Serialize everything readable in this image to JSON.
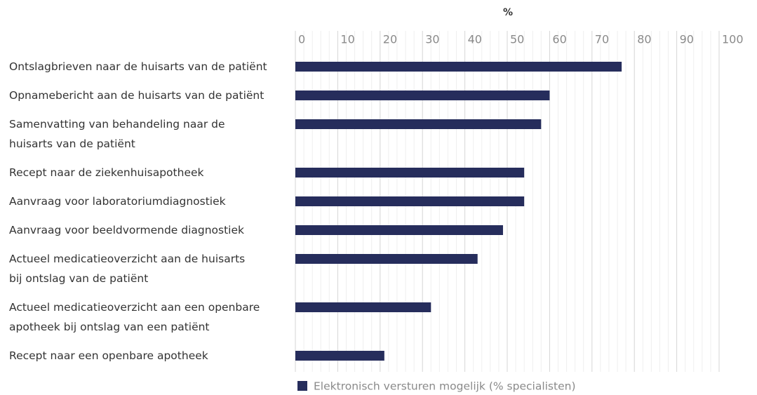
{
  "chart_data": {
    "type": "bar",
    "orientation": "horizontal",
    "title": "%",
    "categories": [
      "Ontslagbrieven naar de huisarts van de patiënt",
      "Opnamebericht aan de huisarts van de patiënt",
      "Samenvatting van behandeling naar de\nhuisarts van de patiënt",
      "Recept naar de ziekenhuisapotheek",
      "Aanvraag voor laboratoriumdiagnostiek",
      "Aanvraag voor beeldvormende diagnostiek",
      "Actueel medicatieoverzicht aan de huisarts\nbij ontslag van de patiënt",
      "Actueel medicatieoverzicht aan een openbare\napotheek bij ontslag van een patiënt",
      "Recept naar een openbare apotheek"
    ],
    "series": [
      {
        "name": "Elektronisch versturen mogelijk (% specialisten)",
        "color": "#262d5c",
        "values": [
          77,
          60,
          58,
          54,
          54,
          49,
          43,
          32,
          21
        ]
      }
    ],
    "xlim": [
      0,
      100
    ],
    "xticks": [
      0,
      10,
      20,
      30,
      40,
      50,
      60,
      70,
      80,
      90,
      100
    ],
    "grid": true,
    "legend": "bottom"
  }
}
